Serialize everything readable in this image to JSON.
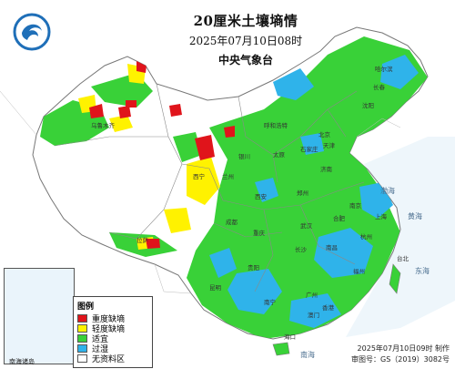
{
  "map": {
    "title": "20厘米土壤墒情",
    "date_line": "2025年07月10日08时",
    "agency": "中央气象台",
    "logo_icon": "cma-logo-icon",
    "legend": {
      "title": "图例",
      "items": [
        {
          "label": "重度缺墒",
          "color": "#e0141b"
        },
        {
          "label": "轻度缺墒",
          "color": "#fff200"
        },
        {
          "label": "适宜",
          "color": "#39d138"
        },
        {
          "label": "过湿",
          "color": "#2fb3ea"
        },
        {
          "label": "无资料区",
          "color": "#ffffff"
        }
      ]
    },
    "inset_label": "南海诸岛",
    "footer": {
      "made": "2025年07月10日09时 制作",
      "review": "审图号：GS（2019）3082号"
    },
    "places": [
      "北京",
      "天津",
      "石家庄",
      "太原",
      "呼和浩特",
      "沈阳",
      "长春",
      "哈尔滨",
      "济南",
      "郑州",
      "西安",
      "兰州",
      "西宁",
      "银川",
      "乌鲁木齐",
      "拉萨",
      "成都",
      "重庆",
      "武汉",
      "长沙",
      "南昌",
      "合肥",
      "南京",
      "上海",
      "杭州",
      "福州",
      "台北",
      "广州",
      "南宁",
      "海口",
      "昆明",
      "贵阳",
      "香港",
      "澳门"
    ],
    "seas": [
      "渤海",
      "黄海",
      "东海",
      "南海"
    ]
  }
}
